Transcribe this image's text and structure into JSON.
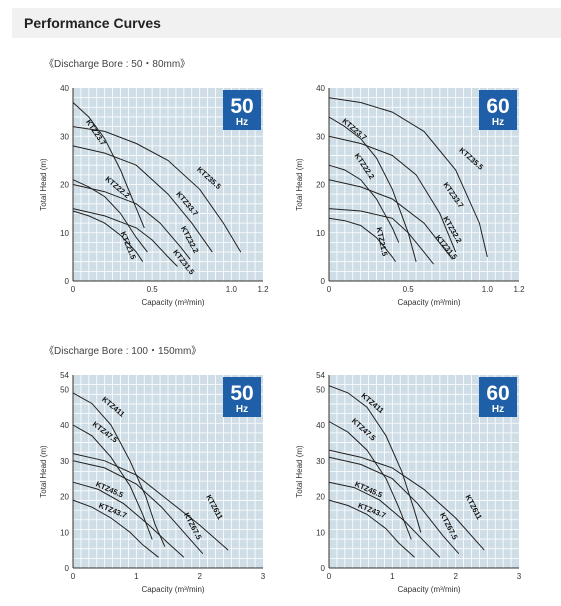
{
  "header": {
    "title": "Performance Curves"
  },
  "sections": [
    {
      "label": "《Discharge Bore : 50・80mm》"
    },
    {
      "label": "《Discharge Bore : 100・150mm》"
    }
  ],
  "colors": {
    "grid_bg": "#cfdde6",
    "grid_line": "#ffffff",
    "badge": "#1f5fa8",
    "curve": "#222222",
    "header_bg": "#f1f1f1"
  },
  "chart_data": [
    {
      "type": "line",
      "badge": {
        "freq": "50",
        "unit": "Hz"
      },
      "xlabel": "Capacity (m³/min)",
      "ylabel": "Total Head (m)",
      "xlim": [
        0,
        1.2
      ],
      "ylim": [
        0,
        40
      ],
      "x_ticks": [
        "0",
        "0.5",
        "1.0",
        "1.2"
      ],
      "x_tick_values": [
        0,
        0.5,
        1.0,
        1.2
      ],
      "y_ticks": [
        "0",
        "10",
        "20",
        "30",
        "40"
      ],
      "y_tick_values": [
        0,
        10,
        20,
        30,
        40
      ],
      "grid": true,
      "series": [
        {
          "name": "KTZ23.7",
          "points": [
            [
              0,
              37
            ],
            [
              0.1,
              34
            ],
            [
              0.2,
              29.5
            ],
            [
              0.3,
              23
            ],
            [
              0.4,
              15
            ],
            [
              0.45,
              11
            ]
          ]
        },
        {
          "name": "KTZ35.5",
          "points": [
            [
              0,
              32
            ],
            [
              0.2,
              31
            ],
            [
              0.4,
              28.5
            ],
            [
              0.6,
              25
            ],
            [
              0.8,
              19
            ],
            [
              0.95,
              12
            ],
            [
              1.06,
              6
            ]
          ]
        },
        {
          "name": "KTZ33.7",
          "points": [
            [
              0,
              28
            ],
            [
              0.2,
              26.5
            ],
            [
              0.4,
              24
            ],
            [
              0.6,
              18
            ],
            [
              0.75,
              12
            ],
            [
              0.88,
              6
            ]
          ]
        },
        {
          "name": "KTZ22.2",
          "points": [
            [
              0,
              21
            ],
            [
              0.1,
              19.5
            ],
            [
              0.2,
              17.5
            ],
            [
              0.3,
              14
            ],
            [
              0.4,
              9
            ],
            [
              0.47,
              6
            ]
          ]
        },
        {
          "name": "KTZ32.2",
          "points": [
            [
              0,
              20
            ],
            [
              0.2,
              18.5
            ],
            [
              0.4,
              16
            ],
            [
              0.55,
              12
            ],
            [
              0.68,
              7
            ],
            [
              0.74,
              4.5
            ]
          ]
        },
        {
          "name": "KTZ31.5",
          "points": [
            [
              0,
              15
            ],
            [
              0.2,
              13.5
            ],
            [
              0.4,
              11
            ],
            [
              0.5,
              8.5
            ],
            [
              0.6,
              5
            ],
            [
              0.66,
              3
            ]
          ]
        },
        {
          "name": "KTZ21.5",
          "points": [
            [
              0,
              14.5
            ],
            [
              0.1,
              13.5
            ],
            [
              0.2,
              12
            ],
            [
              0.3,
              9.5
            ],
            [
              0.4,
              6
            ],
            [
              0.44,
              4
            ]
          ]
        }
      ],
      "labels": [
        {
          "text": "KTZ23.7",
          "x": 0.08,
          "y": 33,
          "rotate": 56
        },
        {
          "text": "KTZ35.5",
          "x": 0.78,
          "y": 23,
          "rotate": 42
        },
        {
          "text": "KTZ33.7",
          "x": 0.65,
          "y": 18,
          "rotate": 50
        },
        {
          "text": "KTZ22.2",
          "x": 0.2,
          "y": 21,
          "rotate": 40
        },
        {
          "text": "KTZ32.2",
          "x": 0.68,
          "y": 11,
          "rotate": 62
        },
        {
          "text": "KTZ31.5",
          "x": 0.63,
          "y": 6,
          "rotate": 52
        },
        {
          "text": "KTZ21.5",
          "x": 0.3,
          "y": 10,
          "rotate": 68
        }
      ]
    },
    {
      "type": "line",
      "badge": {
        "freq": "60",
        "unit": "Hz"
      },
      "xlabel": "Capacity (m³/min)",
      "ylabel": "Total Head (m)",
      "xlim": [
        0,
        1.2
      ],
      "ylim": [
        0,
        40
      ],
      "x_ticks": [
        "0",
        "0.5",
        "1.0",
        "1.2"
      ],
      "x_tick_values": [
        0,
        0.5,
        1.0,
        1.2
      ],
      "y_ticks": [
        "0",
        "10",
        "20",
        "30",
        "40"
      ],
      "y_tick_values": [
        0,
        10,
        20,
        30,
        40
      ],
      "grid": true,
      "series": [
        {
          "name": "KTZ35.5",
          "points": [
            [
              0,
              38
            ],
            [
              0.2,
              37
            ],
            [
              0.4,
              35
            ],
            [
              0.6,
              31
            ],
            [
              0.8,
              23
            ],
            [
              0.95,
              12
            ],
            [
              1.0,
              5
            ]
          ]
        },
        {
          "name": "KTZ23.7",
          "points": [
            [
              0,
              34
            ],
            [
              0.1,
              32
            ],
            [
              0.2,
              29.5
            ],
            [
              0.3,
              25.5
            ],
            [
              0.4,
              19
            ],
            [
              0.5,
              10
            ],
            [
              0.55,
              4
            ]
          ]
        },
        {
          "name": "KTZ33.7",
          "points": [
            [
              0,
              30
            ],
            [
              0.2,
              28.5
            ],
            [
              0.4,
              26
            ],
            [
              0.55,
              22
            ],
            [
              0.7,
              14
            ],
            [
              0.8,
              6
            ]
          ]
        },
        {
          "name": "KTZ22.2",
          "points": [
            [
              0,
              24
            ],
            [
              0.1,
              23
            ],
            [
              0.2,
              21
            ],
            [
              0.3,
              17
            ],
            [
              0.4,
              11
            ],
            [
              0.44,
              8
            ]
          ]
        },
        {
          "name": "KTZ32.2",
          "points": [
            [
              0,
              21
            ],
            [
              0.2,
              19.5
            ],
            [
              0.4,
              17
            ],
            [
              0.6,
              12
            ],
            [
              0.72,
              7
            ],
            [
              0.78,
              4.5
            ]
          ]
        },
        {
          "name": "KTZ31.5",
          "points": [
            [
              0,
              15
            ],
            [
              0.2,
              14.5
            ],
            [
              0.4,
              13
            ],
            [
              0.5,
              10
            ],
            [
              0.6,
              6
            ],
            [
              0.66,
              3.5
            ]
          ]
        },
        {
          "name": "KTZ21.5",
          "points": [
            [
              0,
              13
            ],
            [
              0.1,
              12.5
            ],
            [
              0.2,
              11.5
            ],
            [
              0.3,
              9
            ],
            [
              0.4,
              5
            ],
            [
              0.42,
              4
            ]
          ]
        }
      ],
      "labels": [
        {
          "text": "KTZ35.5",
          "x": 0.82,
          "y": 27,
          "rotate": 42
        },
        {
          "text": "KTZ23.7",
          "x": 0.08,
          "y": 33,
          "rotate": 40
        },
        {
          "text": "KTZ33.7",
          "x": 0.72,
          "y": 20,
          "rotate": 55
        },
        {
          "text": "KTZ22.2",
          "x": 0.16,
          "y": 26,
          "rotate": 56
        },
        {
          "text": "KTZ32.2",
          "x": 0.72,
          "y": 13,
          "rotate": 60
        },
        {
          "text": "KTZ31.5",
          "x": 0.67,
          "y": 9,
          "rotate": 50
        },
        {
          "text": "KTZ21.5",
          "x": 0.3,
          "y": 11,
          "rotate": 78
        }
      ]
    },
    {
      "type": "line",
      "badge": {
        "freq": "50",
        "unit": "Hz"
      },
      "xlabel": "Capacity (m³/min)",
      "ylabel": "Total Head (m)",
      "xlim": [
        0,
        3
      ],
      "ylim": [
        0,
        54
      ],
      "x_ticks": [
        "0",
        "1",
        "2",
        "3"
      ],
      "x_tick_values": [
        0,
        1,
        2,
        3
      ],
      "y_ticks": [
        "0",
        "10",
        "20",
        "30",
        "40",
        "50",
        "54"
      ],
      "y_tick_values": [
        0,
        10,
        20,
        30,
        40,
        50,
        54
      ],
      "grid": true,
      "series": [
        {
          "name": "KTZ411",
          "points": [
            [
              0,
              49
            ],
            [
              0.3,
              46
            ],
            [
              0.6,
              40
            ],
            [
              0.9,
              30
            ],
            [
              1.15,
              20
            ],
            [
              1.3,
              12
            ],
            [
              1.45,
              6
            ]
          ]
        },
        {
          "name": "KTZ47.5",
          "points": [
            [
              0,
              40
            ],
            [
              0.3,
              37
            ],
            [
              0.6,
              31
            ],
            [
              0.9,
              23
            ],
            [
              1.1,
              15
            ],
            [
              1.25,
              8
            ]
          ]
        },
        {
          "name": "KTZ611",
          "points": [
            [
              0,
              32
            ],
            [
              0.5,
              30
            ],
            [
              1.0,
              26
            ],
            [
              1.5,
              19
            ],
            [
              2.0,
              12
            ],
            [
              2.45,
              5
            ]
          ]
        },
        {
          "name": "KTZ67.5",
          "points": [
            [
              0,
              30
            ],
            [
              0.5,
              28
            ],
            [
              1.0,
              23.5
            ],
            [
              1.4,
              17
            ],
            [
              1.8,
              9
            ],
            [
              2.05,
              4
            ]
          ]
        },
        {
          "name": "KTZ45.5",
          "points": [
            [
              0,
              24
            ],
            [
              0.4,
              22
            ],
            [
              0.8,
              18
            ],
            [
              1.2,
              12
            ],
            [
              1.5,
              7
            ],
            [
              1.75,
              3
            ]
          ]
        },
        {
          "name": "KTZ43.7",
          "points": [
            [
              0,
              19
            ],
            [
              0.3,
              17
            ],
            [
              0.6,
              14
            ],
            [
              0.9,
              10
            ],
            [
              1.1,
              6.5
            ],
            [
              1.35,
              3
            ]
          ]
        }
      ],
      "labels": [
        {
          "text": "KTZ411",
          "x": 0.45,
          "y": 47,
          "rotate": 40
        },
        {
          "text": "KTZ47.5",
          "x": 0.3,
          "y": 40,
          "rotate": 38
        },
        {
          "text": "KTZ611",
          "x": 2.1,
          "y": 20,
          "rotate": 62
        },
        {
          "text": "KTZ67.5",
          "x": 1.75,
          "y": 15,
          "rotate": 62
        },
        {
          "text": "KTZ45.5",
          "x": 0.35,
          "y": 23,
          "rotate": 24
        },
        {
          "text": "KTZ43.7",
          "x": 0.4,
          "y": 17,
          "rotate": 22
        }
      ]
    },
    {
      "type": "line",
      "badge": {
        "freq": "60",
        "unit": "Hz"
      },
      "xlabel": "Capacity (m³/min)",
      "ylabel": "Total Head (m)",
      "xlim": [
        0,
        3
      ],
      "ylim": [
        0,
        54
      ],
      "x_ticks": [
        "0",
        "1",
        "2",
        "3"
      ],
      "x_tick_values": [
        0,
        1,
        2,
        3
      ],
      "y_ticks": [
        "0",
        "10",
        "20",
        "30",
        "40",
        "50",
        "54"
      ],
      "y_tick_values": [
        0,
        10,
        20,
        30,
        40,
        50,
        54
      ],
      "grid": true,
      "series": [
        {
          "name": "KTZ411",
          "points": [
            [
              0,
              51
            ],
            [
              0.3,
              49
            ],
            [
              0.6,
              45
            ],
            [
              0.9,
              37
            ],
            [
              1.15,
              27
            ],
            [
              1.35,
              16
            ],
            [
              1.45,
              10
            ]
          ]
        },
        {
          "name": "KTZ47.5",
          "points": [
            [
              0,
              41
            ],
            [
              0.3,
              38
            ],
            [
              0.6,
              33
            ],
            [
              0.9,
              25
            ],
            [
              1.1,
              17
            ],
            [
              1.3,
              8
            ]
          ]
        },
        {
          "name": "KTZ611",
          "points": [
            [
              0,
              33
            ],
            [
              0.5,
              31
            ],
            [
              1.0,
              28
            ],
            [
              1.5,
              22
            ],
            [
              2.0,
              14
            ],
            [
              2.45,
              5
            ]
          ]
        },
        {
          "name": "KTZ67.5",
          "points": [
            [
              0,
              31
            ],
            [
              0.5,
              29
            ],
            [
              1.0,
              25
            ],
            [
              1.4,
              18
            ],
            [
              1.8,
              9
            ],
            [
              2.05,
              4
            ]
          ]
        },
        {
          "name": "KTZ45.5",
          "points": [
            [
              0,
              24
            ],
            [
              0.4,
              22.5
            ],
            [
              0.8,
              19
            ],
            [
              1.2,
              13
            ],
            [
              1.5,
              7.5
            ],
            [
              1.75,
              3
            ]
          ]
        },
        {
          "name": "KTZ43.7",
          "points": [
            [
              0,
              19
            ],
            [
              0.3,
              17.5
            ],
            [
              0.6,
              15
            ],
            [
              0.9,
              11
            ],
            [
              1.1,
              7
            ],
            [
              1.35,
              3
            ]
          ]
        }
      ],
      "labels": [
        {
          "text": "KTZ411",
          "x": 0.5,
          "y": 48,
          "rotate": 40
        },
        {
          "text": "KTZ47.5",
          "x": 0.35,
          "y": 41,
          "rotate": 42
        },
        {
          "text": "KTZ611",
          "x": 2.15,
          "y": 20,
          "rotate": 62
        },
        {
          "text": "KTZ67.5",
          "x": 1.75,
          "y": 15,
          "rotate": 62
        },
        {
          "text": "KTZ45.5",
          "x": 0.4,
          "y": 23,
          "rotate": 24
        },
        {
          "text": "KTZ43.7",
          "x": 0.45,
          "y": 17,
          "rotate": 22
        }
      ]
    }
  ]
}
